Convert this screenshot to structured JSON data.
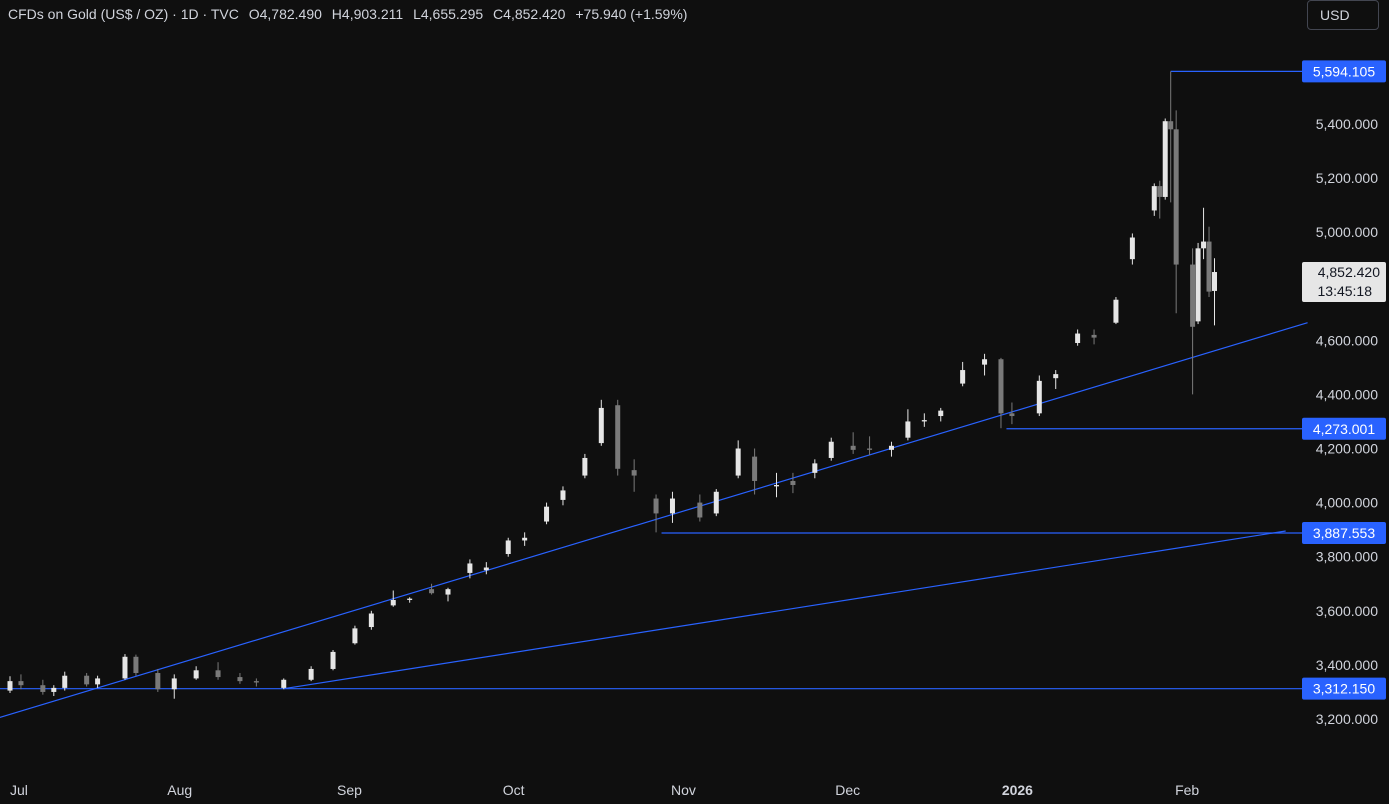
{
  "header": {
    "symbol": "CFDs on Gold (US$ / OZ)",
    "interval": "1D",
    "exchange": "TVC",
    "open_label": "O",
    "open": "4,782.490",
    "high_label": "H",
    "high": "4,903.211",
    "low_label": "L",
    "low": "4,655.295",
    "close_label": "C",
    "close": "4,852.420",
    "change": "+75.940 (+1.59%)"
  },
  "currency": "USD",
  "colors": {
    "background": "#0f0f0f",
    "candle_up": "#e6e6e6",
    "candle_down": "#7a7a7a",
    "line": "#2962ff",
    "tag": "#2962ff",
    "last_price_bg": "#e6e6e6"
  },
  "chart_data": {
    "type": "candlestick",
    "y_axis_ticks": [
      "3,200.000",
      "3,400.000",
      "3,600.000",
      "3,800.000",
      "4,000.000",
      "4,200.000",
      "4,400.000",
      "4,600.000",
      "4,800.000",
      "5,000.000",
      "5,200.000",
      "5,400.000"
    ],
    "y_axis_values": [
      3200,
      3400,
      3600,
      3800,
      4000,
      4200,
      4400,
      4600,
      4800,
      5000,
      5200,
      5400
    ],
    "x_axis_labels": [
      {
        "label": "Jul",
        "date": "2025-07-01"
      },
      {
        "label": "Aug",
        "date": "2025-08-01"
      },
      {
        "label": "Sep",
        "date": "2025-09-01"
      },
      {
        "label": "Oct",
        "date": "2025-10-01"
      },
      {
        "label": "Nov",
        "date": "2025-11-01"
      },
      {
        "label": "Dec",
        "date": "2025-12-01"
      },
      {
        "label": "2026",
        "date": "2026-01-01",
        "bold": true
      },
      {
        "label": "Feb",
        "date": "2026-02-01"
      }
    ],
    "horizontal_levels": [
      {
        "label": "5,594.105",
        "value": 5594.105,
        "from_date": "2026-01-29"
      },
      {
        "label": "4,273.001",
        "value": 4273.001,
        "from_date": "2025-12-30"
      },
      {
        "label": "3,887.553",
        "value": 3887.553,
        "from_date": "2025-10-28"
      },
      {
        "label": "3,312.150",
        "value": 3312.15,
        "from_date": "2025-06-20"
      }
    ],
    "trendlines": [
      {
        "from": {
          "date": "2025-06-20",
          "value": 3150
        },
        "to": {
          "date": "2026-02-23",
          "value": 4665
        }
      },
      {
        "from": {
          "date": "2025-08-20",
          "value": 3312
        },
        "to": {
          "date": "2026-02-19",
          "value": 3895
        }
      }
    ],
    "last_price": {
      "value": "4,852.420",
      "countdown": "13:45:18",
      "level": 4852.42
    },
    "candles": [
      {
        "date": "2025-07-01",
        "o": 3305,
        "h": 3358,
        "l": 3296,
        "c": 3340
      },
      {
        "date": "2025-07-03",
        "o": 3340,
        "h": 3365,
        "l": 3310,
        "c": 3325
      },
      {
        "date": "2025-07-07",
        "o": 3325,
        "h": 3345,
        "l": 3290,
        "c": 3300
      },
      {
        "date": "2025-07-09",
        "o": 3300,
        "h": 3325,
        "l": 3285,
        "c": 3315
      },
      {
        "date": "2025-07-11",
        "o": 3315,
        "h": 3375,
        "l": 3305,
        "c": 3360
      },
      {
        "date": "2025-07-15",
        "o": 3360,
        "h": 3370,
        "l": 3320,
        "c": 3328
      },
      {
        "date": "2025-07-17",
        "o": 3328,
        "h": 3360,
        "l": 3315,
        "c": 3350
      },
      {
        "date": "2025-07-22",
        "o": 3350,
        "h": 3440,
        "l": 3345,
        "c": 3430
      },
      {
        "date": "2025-07-24",
        "o": 3430,
        "h": 3438,
        "l": 3360,
        "c": 3370
      },
      {
        "date": "2025-07-28",
        "o": 3370,
        "h": 3385,
        "l": 3300,
        "c": 3310
      },
      {
        "date": "2025-07-31",
        "o": 3310,
        "h": 3365,
        "l": 3275,
        "c": 3350
      },
      {
        "date": "2025-08-04",
        "o": 3350,
        "h": 3395,
        "l": 3345,
        "c": 3380
      },
      {
        "date": "2025-08-08",
        "o": 3380,
        "h": 3410,
        "l": 3345,
        "c": 3355
      },
      {
        "date": "2025-08-12",
        "o": 3355,
        "h": 3370,
        "l": 3330,
        "c": 3340
      },
      {
        "date": "2025-08-15",
        "o": 3340,
        "h": 3350,
        "l": 3320,
        "c": 3335
      },
      {
        "date": "2025-08-20",
        "o": 3315,
        "h": 3350,
        "l": 3310,
        "c": 3345
      },
      {
        "date": "2025-08-25",
        "o": 3345,
        "h": 3395,
        "l": 3340,
        "c": 3385
      },
      {
        "date": "2025-08-29",
        "o": 3385,
        "h": 3455,
        "l": 3380,
        "c": 3448
      },
      {
        "date": "2025-09-02",
        "o": 3480,
        "h": 3545,
        "l": 3475,
        "c": 3535
      },
      {
        "date": "2025-09-05",
        "o": 3540,
        "h": 3600,
        "l": 3530,
        "c": 3590
      },
      {
        "date": "2025-09-09",
        "o": 3620,
        "h": 3675,
        "l": 3615,
        "c": 3640
      },
      {
        "date": "2025-09-12",
        "o": 3640,
        "h": 3650,
        "l": 3630,
        "c": 3645
      },
      {
        "date": "2025-09-16",
        "o": 3680,
        "h": 3700,
        "l": 3660,
        "c": 3665
      },
      {
        "date": "2025-09-19",
        "o": 3660,
        "h": 3685,
        "l": 3635,
        "c": 3680
      },
      {
        "date": "2025-09-23",
        "o": 3740,
        "h": 3790,
        "l": 3720,
        "c": 3775
      },
      {
        "date": "2025-09-26",
        "o": 3750,
        "h": 3780,
        "l": 3735,
        "c": 3760
      },
      {
        "date": "2025-09-30",
        "o": 3810,
        "h": 3870,
        "l": 3800,
        "c": 3860
      },
      {
        "date": "2025-10-03",
        "o": 3860,
        "h": 3890,
        "l": 3840,
        "c": 3870
      },
      {
        "date": "2025-10-07",
        "o": 3930,
        "h": 4000,
        "l": 3920,
        "c": 3985
      },
      {
        "date": "2025-10-10",
        "o": 4010,
        "h": 4060,
        "l": 3990,
        "c": 4045
      },
      {
        "date": "2025-10-14",
        "o": 4100,
        "h": 4180,
        "l": 4090,
        "c": 4165
      },
      {
        "date": "2025-10-17",
        "o": 4220,
        "h": 4380,
        "l": 4210,
        "c": 4350
      },
      {
        "date": "2025-10-20",
        "o": 4360,
        "h": 4380,
        "l": 4100,
        "c": 4125
      },
      {
        "date": "2025-10-23",
        "o": 4120,
        "h": 4160,
        "l": 4040,
        "c": 4100
      },
      {
        "date": "2025-10-27",
        "o": 4015,
        "h": 4030,
        "l": 3890,
        "c": 3960
      },
      {
        "date": "2025-10-30",
        "o": 3960,
        "h": 4040,
        "l": 3925,
        "c": 4015
      },
      {
        "date": "2025-11-04",
        "o": 4000,
        "h": 4030,
        "l": 3930,
        "c": 3945
      },
      {
        "date": "2025-11-07",
        "o": 3960,
        "h": 4050,
        "l": 3950,
        "c": 4040
      },
      {
        "date": "2025-11-11",
        "o": 4100,
        "h": 4230,
        "l": 4090,
        "c": 4200
      },
      {
        "date": "2025-11-14",
        "o": 4170,
        "h": 4200,
        "l": 4030,
        "c": 4080
      },
      {
        "date": "2025-11-18",
        "o": 4060,
        "h": 4110,
        "l": 4020,
        "c": 4065
      },
      {
        "date": "2025-11-21",
        "o": 4080,
        "h": 4110,
        "l": 4035,
        "c": 4065
      },
      {
        "date": "2025-11-25",
        "o": 4110,
        "h": 4160,
        "l": 4090,
        "c": 4145
      },
      {
        "date": "2025-11-28",
        "o": 4165,
        "h": 4240,
        "l": 4155,
        "c": 4225
      },
      {
        "date": "2025-12-02",
        "o": 4210,
        "h": 4260,
        "l": 4180,
        "c": 4195
      },
      {
        "date": "2025-12-05",
        "o": 4200,
        "h": 4245,
        "l": 4175,
        "c": 4195
      },
      {
        "date": "2025-12-09",
        "o": 4195,
        "h": 4225,
        "l": 4170,
        "c": 4210
      },
      {
        "date": "2025-12-12",
        "o": 4240,
        "h": 4345,
        "l": 4230,
        "c": 4300
      },
      {
        "date": "2025-12-15",
        "o": 4300,
        "h": 4330,
        "l": 4280,
        "c": 4305
      },
      {
        "date": "2025-12-18",
        "o": 4320,
        "h": 4350,
        "l": 4300,
        "c": 4340
      },
      {
        "date": "2025-12-22",
        "o": 4440,
        "h": 4520,
        "l": 4430,
        "c": 4490
      },
      {
        "date": "2025-12-26",
        "o": 4510,
        "h": 4550,
        "l": 4470,
        "c": 4530
      },
      {
        "date": "2025-12-29",
        "o": 4530,
        "h": 4535,
        "l": 4275,
        "c": 4330
      },
      {
        "date": "2025-12-31",
        "o": 4330,
        "h": 4370,
        "l": 4290,
        "c": 4320
      },
      {
        "date": "2026-01-05",
        "o": 4330,
        "h": 4470,
        "l": 4320,
        "c": 4450
      },
      {
        "date": "2026-01-08",
        "o": 4460,
        "h": 4490,
        "l": 4420,
        "c": 4475
      },
      {
        "date": "2026-01-12",
        "o": 4590,
        "h": 4640,
        "l": 4580,
        "c": 4625
      },
      {
        "date": "2026-01-15",
        "o": 4620,
        "h": 4640,
        "l": 4585,
        "c": 4610
      },
      {
        "date": "2026-01-19",
        "o": 4665,
        "h": 4760,
        "l": 4660,
        "c": 4750
      },
      {
        "date": "2026-01-22",
        "o": 4900,
        "h": 4995,
        "l": 4880,
        "c": 4980
      },
      {
        "date": "2026-01-26",
        "o": 5080,
        "h": 5180,
        "l": 5060,
        "c": 5170
      },
      {
        "date": "2026-01-27",
        "o": 5170,
        "h": 5190,
        "l": 5050,
        "c": 5130
      },
      {
        "date": "2026-01-28",
        "o": 5130,
        "h": 5420,
        "l": 5120,
        "c": 5410
      },
      {
        "date": "2026-01-29",
        "o": 5410,
        "h": 5594,
        "l": 5110,
        "c": 5380
      },
      {
        "date": "2026-01-30",
        "o": 5380,
        "h": 5450,
        "l": 4700,
        "c": 4880
      },
      {
        "date": "2026-02-02",
        "o": 4880,
        "h": 4940,
        "l": 4400,
        "c": 4650
      },
      {
        "date": "2026-02-03",
        "o": 4670,
        "h": 4960,
        "l": 4660,
        "c": 4940
      },
      {
        "date": "2026-02-04",
        "o": 4940,
        "h": 5090,
        "l": 4900,
        "c": 4965
      },
      {
        "date": "2026-02-05",
        "o": 4965,
        "h": 5020,
        "l": 4760,
        "c": 4780
      },
      {
        "date": "2026-02-06",
        "o": 4782.49,
        "h": 4903.211,
        "l": 4655.295,
        "c": 4852.42
      }
    ]
  }
}
